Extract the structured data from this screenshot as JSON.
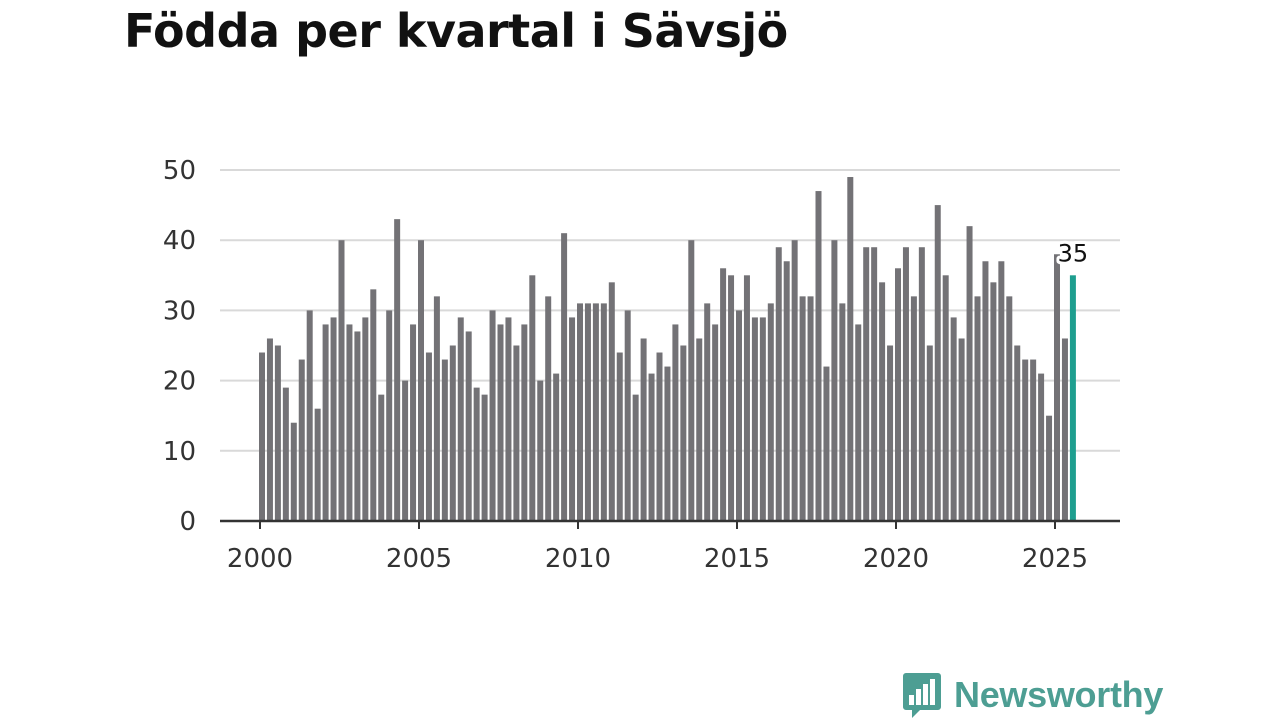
{
  "title": "Födda per kvartal i Sävsjö",
  "brand": {
    "name": "Newsworthy",
    "logo_icon": "bar-chart-speech-bubble-icon"
  },
  "colors": {
    "bar": "#737276",
    "highlight": "#1e9e8f",
    "grid": "#d9d9d9",
    "axis": "#333333",
    "brand": "#4d9e93"
  },
  "chart_data": {
    "type": "bar",
    "title": "Födda per kvartal i Sävsjö",
    "xlabel": "",
    "ylabel": "",
    "ylim": [
      0,
      50
    ],
    "yticks": [
      0,
      10,
      20,
      30,
      40,
      50
    ],
    "xticks": [
      "2000",
      "2005",
      "2010",
      "2015",
      "2020",
      "2025"
    ],
    "grid": true,
    "start": "2000 Q1",
    "end": "2025 Q3",
    "values": [
      24,
      26,
      25,
      19,
      14,
      23,
      30,
      16,
      28,
      29,
      40,
      28,
      27,
      29,
      33,
      18,
      30,
      43,
      20,
      28,
      40,
      24,
      32,
      23,
      25,
      29,
      27,
      19,
      18,
      30,
      28,
      29,
      25,
      28,
      35,
      20,
      32,
      21,
      41,
      29,
      31,
      31,
      31,
      31,
      34,
      24,
      30,
      18,
      26,
      21,
      24,
      22,
      28,
      25,
      40,
      26,
      31,
      28,
      36,
      35,
      30,
      35,
      29,
      29,
      31,
      39,
      37,
      40,
      32,
      32,
      47,
      22,
      40,
      31,
      49,
      28,
      39,
      39,
      34,
      25,
      36,
      39,
      32,
      39,
      25,
      45,
      35,
      29,
      26,
      42,
      32,
      37,
      34,
      37,
      32,
      25,
      23,
      23,
      21,
      15,
      38,
      26,
      35
    ],
    "highlight": {
      "label": "35",
      "value": 35
    }
  }
}
